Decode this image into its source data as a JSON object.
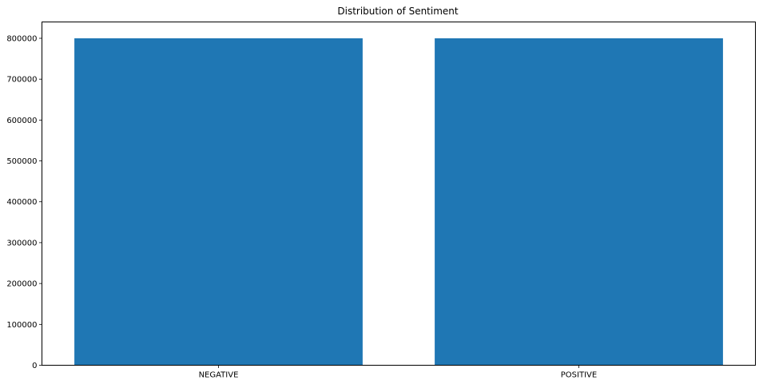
{
  "chart_data": {
    "type": "bar",
    "title": "Distribution of Sentiment",
    "xlabel": "",
    "ylabel": "",
    "categories": [
      "NEGATIVE",
      "POSITIVE"
    ],
    "values": [
      800000,
      800000
    ],
    "ylim": [
      0,
      840000
    ],
    "yticks": [
      0,
      100000,
      200000,
      300000,
      400000,
      500000,
      600000,
      700000,
      800000
    ],
    "ytick_labels": [
      "0",
      "100000",
      "200000",
      "300000",
      "400000",
      "500000",
      "600000",
      "700000",
      "800000"
    ],
    "grid": false,
    "legend": "none",
    "colors": {
      "bar": "#1f77b4",
      "axis": "#000000",
      "background": "#ffffff"
    }
  }
}
